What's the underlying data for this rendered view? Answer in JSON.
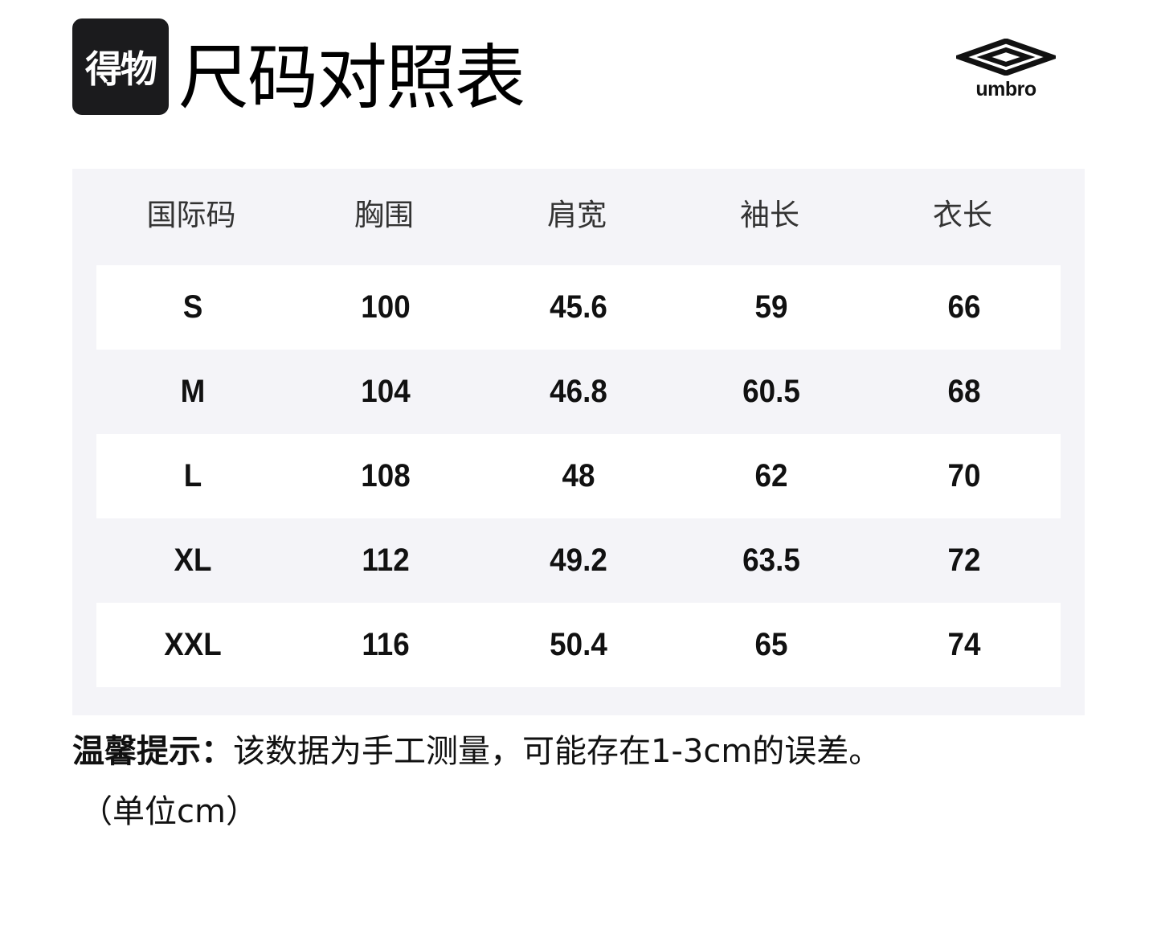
{
  "header": {
    "app_logo_text": "得物",
    "title": "尺码对照表",
    "brand_logo_text": "umbro"
  },
  "table": {
    "columns": [
      "国际码",
      "胸围",
      "肩宽",
      "袖长",
      "衣长"
    ],
    "rows": [
      [
        "S",
        "100",
        "45.6",
        "59",
        "66"
      ],
      [
        "M",
        "104",
        "46.8",
        "60.5",
        "68"
      ],
      [
        "L",
        "108",
        "48",
        "62",
        "70"
      ],
      [
        "XL",
        "112",
        "49.2",
        "63.5",
        "72"
      ],
      [
        "XXL",
        "116",
        "50.4",
        "65",
        "74"
      ]
    ]
  },
  "footer": {
    "note_label": "温馨提示：",
    "note_text": "该数据为手工测量，可能存在1-3cm的误差。",
    "unit": "（单位cm）"
  },
  "colors": {
    "panel_bg": "#f4f4f8",
    "logo_bg": "#1b1b1d"
  }
}
